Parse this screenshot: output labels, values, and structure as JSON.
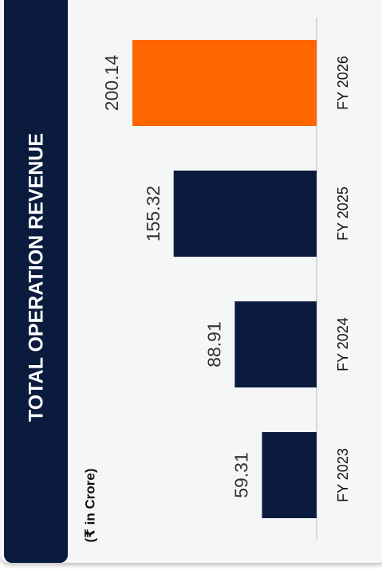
{
  "chart_data": {
    "type": "bar",
    "orientation": "rotated",
    "title": "TOTAL OPERATION REVENUE",
    "subtitle": "(₹ in Crore)",
    "categories": [
      "FY 2023",
      "FY 2024",
      "FY 2025",
      "FY 2026"
    ],
    "values": [
      59.31,
      88.91,
      155.32,
      200.14
    ],
    "colors": [
      "#0a1b3d",
      "#0a1b3d",
      "#0a1b3d",
      "#ff6600"
    ]
  }
}
